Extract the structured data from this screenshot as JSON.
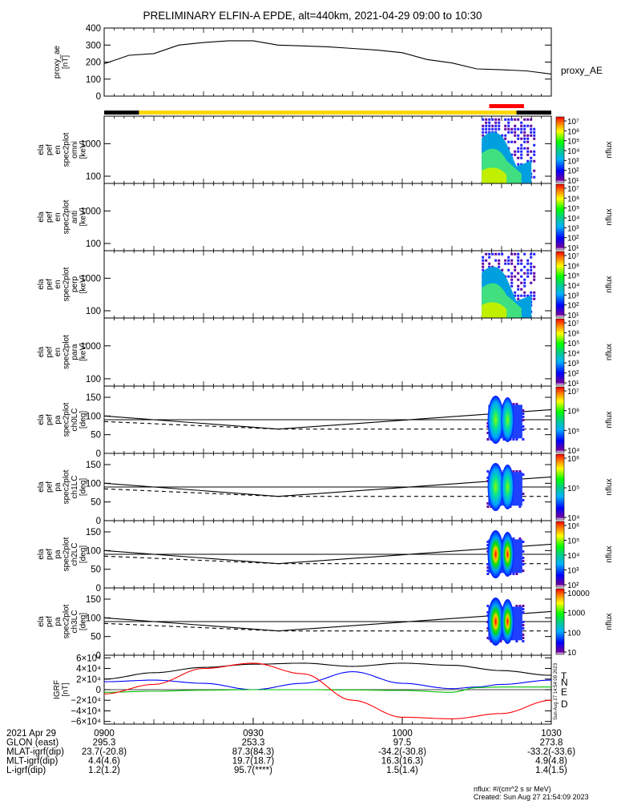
{
  "title": "PRELIMINARY ELFIN-A EPDE, alt=440km, 2021-04-29 09:00 to 10:30",
  "colors": {
    "sci_bar": "#ffd700",
    "sci_bar_dark": "#000000",
    "marker_bar": "#ff0000",
    "trace": "#000000",
    "grf_T": "#000000",
    "grf_N": "#0000ff",
    "grf_E": "#00c000",
    "grf_D": "#ff0000"
  },
  "chart_data": [
    {
      "panel": "proxy_ae",
      "type": "line",
      "ylabel": [
        "proxy_ae",
        "[nT]"
      ],
      "ylim": [
        0,
        400
      ],
      "yticks": [
        "0",
        "100",
        "200",
        "300",
        "400"
      ],
      "legend": "proxy_AE",
      "x": [
        0,
        5,
        10,
        15,
        20,
        25,
        30,
        35,
        40,
        45,
        50,
        55,
        60,
        65,
        70,
        75,
        80,
        85,
        90
      ],
      "values": [
        190,
        240,
        250,
        300,
        315,
        325,
        325,
        300,
        295,
        290,
        280,
        270,
        255,
        215,
        195,
        160,
        155,
        148,
        130
      ]
    },
    {
      "panel": "omni",
      "type": "heatmap",
      "ylabel": [
        "ela",
        "pef",
        "en",
        "spec2plot",
        "omni",
        "[keV]"
      ],
      "yticks": [
        "100",
        "1000"
      ],
      "ytick_values": [
        100,
        1000
      ],
      "ylim": [
        60,
        7000
      ],
      "scale": "log",
      "colorbar": {
        "label": "nflux",
        "ticks": [
          "10¹",
          "10²",
          "10³",
          "10⁴",
          "10⁵",
          "10⁶",
          "10⁷"
        ]
      }
    },
    {
      "panel": "anti",
      "type": "heatmap",
      "ylabel": [
        "ela",
        "pef",
        "en",
        "spec2plot",
        "anti",
        "[keV]"
      ],
      "yticks": [
        "100",
        "1000"
      ],
      "ytick_values": [
        100,
        1000
      ],
      "ylim": [
        60,
        7000
      ],
      "scale": "log",
      "colorbar": {
        "label": "nflux",
        "ticks": [
          "10¹",
          "10²",
          "10³",
          "10⁴",
          "10⁵",
          "10⁶",
          "10⁷"
        ]
      }
    },
    {
      "panel": "perp",
      "type": "heatmap",
      "ylabel": [
        "ela",
        "pef",
        "en",
        "spec2plot",
        "perp",
        "[keV]"
      ],
      "yticks": [
        "100",
        "1000"
      ],
      "ytick_values": [
        100,
        1000
      ],
      "ylim": [
        60,
        7000
      ],
      "scale": "log",
      "colorbar": {
        "label": "nflux",
        "ticks": [
          "10¹",
          "10²",
          "10³",
          "10⁴",
          "10⁵",
          "10⁶",
          "10⁷"
        ]
      }
    },
    {
      "panel": "para",
      "type": "heatmap",
      "ylabel": [
        "ela",
        "pef",
        "en",
        "spec2plot",
        "para",
        "[keV]"
      ],
      "yticks": [
        "100",
        "1000"
      ],
      "ytick_values": [
        100,
        1000
      ],
      "ylim": [
        60,
        7000
      ],
      "scale": "log",
      "colorbar": {
        "label": "nflux",
        "ticks": [
          "10¹",
          "10²",
          "10³",
          "10⁴",
          "10⁵",
          "10⁶",
          "10⁷"
        ]
      }
    },
    {
      "panel": "ch0LC",
      "type": "heatmap",
      "ylabel": [
        "ela",
        "pef",
        "pa",
        "spec2plot",
        "ch0LC",
        "[deg]"
      ],
      "yticks": [
        "0",
        "50",
        "100",
        "150"
      ],
      "ytick_values": [
        0,
        50,
        100,
        150
      ],
      "ylim": [
        0,
        180
      ],
      "lines": [
        {
          "x": [
            0,
            35,
            90
          ],
          "y": [
            100,
            65,
            117
          ]
        },
        {
          "x": [
            0,
            35,
            90
          ],
          "y": [
            85,
            65,
            65
          ],
          "dash": true
        },
        {
          "x": [
            0,
            90
          ],
          "y": [
            90,
            90
          ]
        }
      ],
      "colorbar": {
        "label": "nflux",
        "ticks": [
          "10⁴",
          "10⁵",
          "10⁶",
          "10⁷"
        ]
      }
    },
    {
      "panel": "ch1LC",
      "type": "heatmap",
      "ylabel": [
        "ela",
        "pef",
        "pa",
        "spec2plot",
        "ch1LC",
        "[deg]"
      ],
      "yticks": [
        "0",
        "50",
        "100",
        "150"
      ],
      "ytick_values": [
        0,
        50,
        100,
        150
      ],
      "ylim": [
        0,
        180
      ],
      "lines": [
        {
          "x": [
            0,
            35,
            90
          ],
          "y": [
            100,
            65,
            117
          ]
        },
        {
          "x": [
            0,
            35,
            90
          ],
          "y": [
            85,
            65,
            65
          ],
          "dash": true
        },
        {
          "x": [
            0,
            90
          ],
          "y": [
            90,
            90
          ]
        }
      ],
      "colorbar": {
        "label": "nflux",
        "ticks": [
          "10⁴",
          "10⁵",
          "10⁶"
        ]
      }
    },
    {
      "panel": "ch2LC",
      "type": "heatmap",
      "ylabel": [
        "ela",
        "pef",
        "pa",
        "spec2plot",
        "ch2LC",
        "[deg]"
      ],
      "yticks": [
        "0",
        "50",
        "100",
        "150"
      ],
      "ytick_values": [
        0,
        50,
        100,
        150
      ],
      "ylim": [
        0,
        180
      ],
      "lines": [
        {
          "x": [
            0,
            35,
            90
          ],
          "y": [
            100,
            65,
            117
          ]
        },
        {
          "x": [
            0,
            35,
            90
          ],
          "y": [
            85,
            65,
            65
          ],
          "dash": true
        },
        {
          "x": [
            0,
            90
          ],
          "y": [
            90,
            90
          ]
        }
      ],
      "colorbar": {
        "label": "nflux",
        "ticks": [
          "10²",
          "10³",
          "10⁴",
          "10⁵",
          "10⁶"
        ]
      }
    },
    {
      "panel": "ch3LC",
      "type": "heatmap",
      "ylabel": [
        "ela",
        "pef",
        "pa",
        "spec2plot",
        "ch3LC",
        "[deg]"
      ],
      "yticks": [
        "0",
        "50",
        "100",
        "150"
      ],
      "ytick_values": [
        0,
        50,
        100,
        150
      ],
      "ylim": [
        0,
        180
      ],
      "lines": [
        {
          "x": [
            0,
            35,
            90
          ],
          "y": [
            100,
            65,
            117
          ]
        },
        {
          "x": [
            0,
            35,
            90
          ],
          "y": [
            85,
            65,
            65
          ],
          "dash": true
        },
        {
          "x": [
            0,
            90
          ],
          "y": [
            90,
            90
          ]
        }
      ],
      "colorbar": {
        "label": "nflux",
        "ticks": [
          "10",
          "100",
          "1000",
          "10000"
        ]
      }
    },
    {
      "panel": "IGRF",
      "type": "line",
      "ylabel": [
        "IGRF",
        "[nT]"
      ],
      "ylim": [
        -65000,
        65000
      ],
      "yticks": [
        "−6×10⁴",
        "−4×10⁴",
        "−2×10⁴",
        "0",
        "2×10⁴",
        "4×10⁴",
        "6×10⁴"
      ],
      "ytick_values": [
        -60000,
        -40000,
        -20000,
        0,
        20000,
        40000,
        60000
      ],
      "series": [
        {
          "name": "T",
          "x": [
            0,
            10,
            20,
            30,
            40,
            50,
            60,
            70,
            80,
            90
          ],
          "values": [
            20000,
            32000,
            42000,
            48000,
            50000,
            44000,
            50000,
            46000,
            36000,
            27000
          ]
        },
        {
          "name": "N",
          "x": [
            0,
            10,
            20,
            30,
            40,
            50,
            60,
            70,
            75,
            80,
            90
          ],
          "values": [
            15000,
            18000,
            12000,
            0,
            12000,
            34000,
            12000,
            2000,
            5000,
            10000,
            18000
          ]
        },
        {
          "name": "E",
          "x": [
            0,
            10,
            20,
            30,
            40,
            50,
            60,
            70,
            75,
            80,
            90
          ],
          "values": [
            -5000,
            -3000,
            -1000,
            0,
            0,
            -500,
            -1500,
            -5000,
            4000,
            5000,
            5000
          ]
        },
        {
          "name": "D",
          "x": [
            0,
            10,
            20,
            30,
            40,
            50,
            60,
            70,
            80,
            90
          ],
          "values": [
            -8000,
            10000,
            40000,
            50000,
            30000,
            -20000,
            -52000,
            -55000,
            -45000,
            -20000
          ]
        }
      ]
    }
  ],
  "time_axis": {
    "ticks": [
      "0900",
      "0930",
      "1000",
      "1030"
    ],
    "tick_values": [
      0,
      30,
      60,
      90
    ],
    "rows": [
      {
        "label": "2021 Apr 29",
        "values": [
          "0900",
          "0930",
          "1000",
          "1030"
        ]
      },
      {
        "label": "GLON (east)",
        "values": [
          "295.3",
          "253.3",
          "97.5",
          "273.8"
        ]
      },
      {
        "label": "MLAT-igrf(dip)",
        "values": [
          "23.7(-20.8)",
          "87.3(84.3)",
          "-34.2(-30.8)",
          "-33.2(-33.6)"
        ]
      },
      {
        "label": "MLT-igrf(dip)",
        "values": [
          "4.4(4.6)",
          "19.7(18.7)",
          "16.3(16.3)",
          "4.9(4.8)"
        ]
      },
      {
        "label": "L-igrf(dip)",
        "values": [
          "1.2(1.2)",
          "95.7(****)",
          "1.5(1.4)",
          "1.4(1.5)"
        ]
      }
    ]
  },
  "footer": {
    "units": "nflux: #/(cm^2 s sr MeV)",
    "created": "Created: Sun Aug 27 21:54:09 2023",
    "side_stamp": "Sun Aug 27 14:54:09 2023"
  }
}
